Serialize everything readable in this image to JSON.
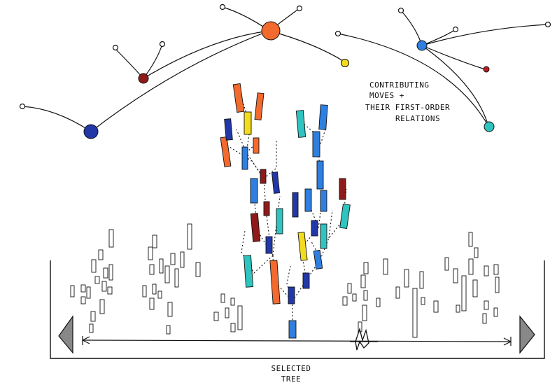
{
  "annotation": {
    "lines": [
      "CONTRIBUTING",
      "MOVES +",
      "THEIR FIRST-ORDER",
      "RELATIONS"
    ]
  },
  "caption": {
    "lines": [
      "SELECTED",
      "TREE"
    ]
  },
  "nodes": {
    "large_orange": "#f26a2e",
    "dark_red": "#8e1a1a",
    "navy_blue": "#2238a8",
    "yellow": "#f3dc1f",
    "sky_blue": "#2e7fe0",
    "small_red": "#b41e1e",
    "teal": "#2fc4c0"
  },
  "icons": {
    "left_arrow": "left-triangle-icon",
    "right_arrow": "right-triangle-icon",
    "bracket": "double-arrow-icon",
    "marker": "selection-marker-icon"
  }
}
